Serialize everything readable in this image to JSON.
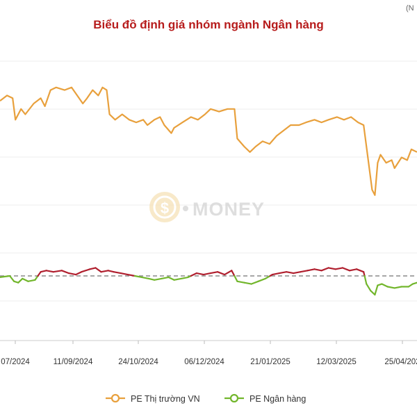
{
  "corner_note": "(N",
  "watermark": {
    "text": "MONEY",
    "glyph": "$"
  },
  "colors": {
    "market": "#e8a03c",
    "bank_below": "#72b62c",
    "bank_above": "#b01f2e",
    "reference": "#8a8a8a",
    "title": "#b71c1c"
  },
  "chart_data": {
    "type": "line",
    "title": "Biểu đồ định giá nhóm ngành Ngân hàng",
    "xlabel": "",
    "ylabel": "",
    "x_ticks": [
      "07/2024",
      "11/09/2024",
      "24/10/2024",
      "06/12/2024",
      "21/01/2025",
      "12/03/2025",
      "25/04/202"
    ],
    "x_domain": [
      "2024-07-15",
      "2025-05-08"
    ],
    "grid": "horizontal",
    "legend_position": "bottom",
    "reference_line": {
      "y": 8.4,
      "style": "dashed"
    },
    "series": [
      {
        "name": "PE Thị trường VN",
        "color": "#e8a03c",
        "points": [
          [
            "2024-07-15",
            14.9
          ],
          [
            "2024-07-20",
            15.1
          ],
          [
            "2024-07-24",
            15.0
          ],
          [
            "2024-07-26",
            14.2
          ],
          [
            "2024-07-30",
            14.6
          ],
          [
            "2024-08-02",
            14.4
          ],
          [
            "2024-08-08",
            14.8
          ],
          [
            "2024-08-13",
            15.0
          ],
          [
            "2024-08-16",
            14.7
          ],
          [
            "2024-08-20",
            15.3
          ],
          [
            "2024-08-24",
            15.4
          ],
          [
            "2024-08-30",
            15.3
          ],
          [
            "2024-09-04",
            15.4
          ],
          [
            "2024-09-08",
            15.1
          ],
          [
            "2024-09-12",
            14.8
          ],
          [
            "2024-09-15",
            15.0
          ],
          [
            "2024-09-19",
            15.3
          ],
          [
            "2024-09-23",
            15.1
          ],
          [
            "2024-09-26",
            15.4
          ],
          [
            "2024-09-29",
            15.3
          ],
          [
            "2024-10-01",
            14.4
          ],
          [
            "2024-10-05",
            14.2
          ],
          [
            "2024-10-10",
            14.4
          ],
          [
            "2024-10-15",
            14.2
          ],
          [
            "2024-10-20",
            14.1
          ],
          [
            "2024-10-25",
            14.2
          ],
          [
            "2024-10-28",
            14.0
          ],
          [
            "2024-11-02",
            14.2
          ],
          [
            "2024-11-06",
            14.3
          ],
          [
            "2024-11-09",
            14.0
          ],
          [
            "2024-11-14",
            13.7
          ],
          [
            "2024-11-16",
            13.9
          ],
          [
            "2024-11-22",
            14.1
          ],
          [
            "2024-11-28",
            14.3
          ],
          [
            "2024-12-03",
            14.2
          ],
          [
            "2024-12-08",
            14.4
          ],
          [
            "2024-12-12",
            14.6
          ],
          [
            "2024-12-18",
            14.5
          ],
          [
            "2024-12-24",
            14.6
          ],
          [
            "2024-12-29",
            14.6
          ],
          [
            "2024-12-31",
            13.5
          ],
          [
            "2025-01-05",
            13.2
          ],
          [
            "2025-01-09",
            13.0
          ],
          [
            "2025-01-13",
            13.2
          ],
          [
            "2025-01-18",
            13.4
          ],
          [
            "2025-01-23",
            13.3
          ],
          [
            "2025-01-28",
            13.6
          ],
          [
            "2025-02-02",
            13.8
          ],
          [
            "2025-02-07",
            14.0
          ],
          [
            "2025-02-13",
            14.0
          ],
          [
            "2025-02-18",
            14.1
          ],
          [
            "2025-02-24",
            14.2
          ],
          [
            "2025-03-01",
            14.1
          ],
          [
            "2025-03-06",
            14.2
          ],
          [
            "2025-03-12",
            14.3
          ],
          [
            "2025-03-17",
            14.2
          ],
          [
            "2025-03-22",
            14.3
          ],
          [
            "2025-03-27",
            14.1
          ],
          [
            "2025-03-31",
            14.0
          ],
          [
            "2025-04-03",
            12.8
          ],
          [
            "2025-04-06",
            11.6
          ],
          [
            "2025-04-08",
            11.4
          ],
          [
            "2025-04-10",
            12.6
          ],
          [
            "2025-04-12",
            12.9
          ],
          [
            "2025-04-16",
            12.6
          ],
          [
            "2025-04-20",
            12.7
          ],
          [
            "2025-04-22",
            12.4
          ],
          [
            "2025-04-27",
            12.8
          ],
          [
            "2025-05-01",
            12.7
          ],
          [
            "2025-05-04",
            13.1
          ],
          [
            "2025-05-08",
            13.0
          ]
        ]
      },
      {
        "name": "PE Ngân hàng",
        "color": "#72b62c",
        "color_above_reference": "#b01f2e",
        "points": [
          [
            "2024-07-15",
            8.35
          ],
          [
            "2024-07-22",
            8.4
          ],
          [
            "2024-07-25",
            8.2
          ],
          [
            "2024-07-28",
            8.15
          ],
          [
            "2024-07-31",
            8.3
          ],
          [
            "2024-08-04",
            8.2
          ],
          [
            "2024-08-09",
            8.25
          ],
          [
            "2024-08-13",
            8.55
          ],
          [
            "2024-08-17",
            8.6
          ],
          [
            "2024-08-22",
            8.55
          ],
          [
            "2024-08-28",
            8.6
          ],
          [
            "2024-09-02",
            8.5
          ],
          [
            "2024-09-07",
            8.45
          ],
          [
            "2024-09-11",
            8.55
          ],
          [
            "2024-09-17",
            8.65
          ],
          [
            "2024-09-21",
            8.7
          ],
          [
            "2024-09-25",
            8.55
          ],
          [
            "2024-09-30",
            8.6
          ],
          [
            "2024-10-04",
            8.55
          ],
          [
            "2024-10-09",
            8.5
          ],
          [
            "2024-10-14",
            8.45
          ],
          [
            "2024-10-19",
            8.4
          ],
          [
            "2024-10-24",
            8.35
          ],
          [
            "2024-10-29",
            8.3
          ],
          [
            "2024-11-02",
            8.25
          ],
          [
            "2024-11-07",
            8.3
          ],
          [
            "2024-11-12",
            8.35
          ],
          [
            "2024-11-16",
            8.25
          ],
          [
            "2024-11-21",
            8.3
          ],
          [
            "2024-11-26",
            8.35
          ],
          [
            "2024-12-02",
            8.5
          ],
          [
            "2024-12-07",
            8.45
          ],
          [
            "2024-12-12",
            8.5
          ],
          [
            "2024-12-17",
            8.55
          ],
          [
            "2024-12-22",
            8.45
          ],
          [
            "2024-12-27",
            8.6
          ],
          [
            "2024-12-31",
            8.2
          ],
          [
            "2025-01-05",
            8.15
          ],
          [
            "2025-01-10",
            8.1
          ],
          [
            "2025-01-15",
            8.2
          ],
          [
            "2025-01-20",
            8.3
          ],
          [
            "2025-01-25",
            8.45
          ],
          [
            "2025-01-30",
            8.5
          ],
          [
            "2025-02-04",
            8.55
          ],
          [
            "2025-02-09",
            8.5
          ],
          [
            "2025-02-14",
            8.55
          ],
          [
            "2025-02-19",
            8.6
          ],
          [
            "2025-02-24",
            8.65
          ],
          [
            "2025-03-01",
            8.6
          ],
          [
            "2025-03-06",
            8.7
          ],
          [
            "2025-03-11",
            8.65
          ],
          [
            "2025-03-16",
            8.7
          ],
          [
            "2025-03-21",
            8.6
          ],
          [
            "2025-03-26",
            8.65
          ],
          [
            "2025-03-31",
            8.55
          ],
          [
            "2025-04-02",
            8.1
          ],
          [
            "2025-04-05",
            7.85
          ],
          [
            "2025-04-08",
            7.7
          ],
          [
            "2025-04-10",
            8.05
          ],
          [
            "2025-04-13",
            8.1
          ],
          [
            "2025-04-17",
            8.0
          ],
          [
            "2025-04-22",
            7.95
          ],
          [
            "2025-04-27",
            8.0
          ],
          [
            "2025-05-02",
            8.0
          ],
          [
            "2025-05-05",
            8.1
          ],
          [
            "2025-05-08",
            8.15
          ]
        ]
      }
    ]
  }
}
